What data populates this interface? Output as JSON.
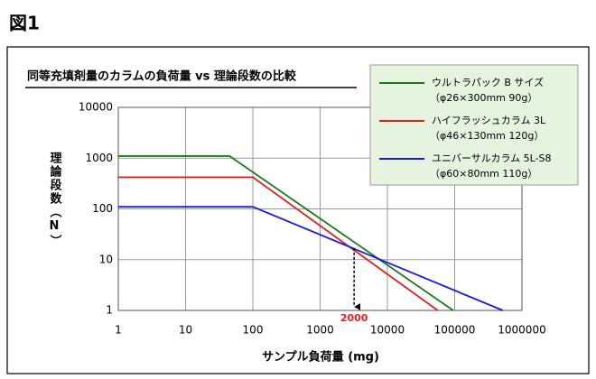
{
  "figure_label": "図1",
  "chart_data": {
    "type": "line",
    "title": "同等充填剤量のカラムの負荷量 vs 理論段数の比較",
    "xlabel": "サンプル負荷量 (mg)",
    "ylabel": "理論段数（N）",
    "xscale": "log",
    "yscale": "log",
    "grid": true,
    "legend": "upper right",
    "xlim": [
      1,
      1000000
    ],
    "xticks": [
      1,
      10,
      100,
      1000,
      10000,
      100000,
      1000000
    ],
    "ylim": [
      1,
      10000
    ],
    "yticks": [
      1,
      10,
      100,
      1000,
      10000
    ],
    "series": [
      {
        "name": "ウルトラパック B サイズ",
        "detail": "（φ26×300mm 90g）",
        "color": "#1a7a1a",
        "x": [
          1,
          45,
          95000
        ],
        "values": [
          1100,
          1100,
          1
        ]
      },
      {
        "name": "ハイフラッシュカラム 3L",
        "detail": "（φ46×130mm 120g）",
        "color": "#e02020",
        "x": [
          1,
          100,
          56000
        ],
        "values": [
          420,
          420,
          1
        ]
      },
      {
        "name": "ユニバーサルカラム 5L-S8",
        "detail": "（φ60×80mm 110g）",
        "color": "#1a1adc",
        "x": [
          1,
          100,
          520000
        ],
        "values": [
          110,
          110,
          1
        ]
      }
    ],
    "annotations": [
      {
        "label": "2000",
        "x": 3200,
        "y": 17
      }
    ]
  }
}
